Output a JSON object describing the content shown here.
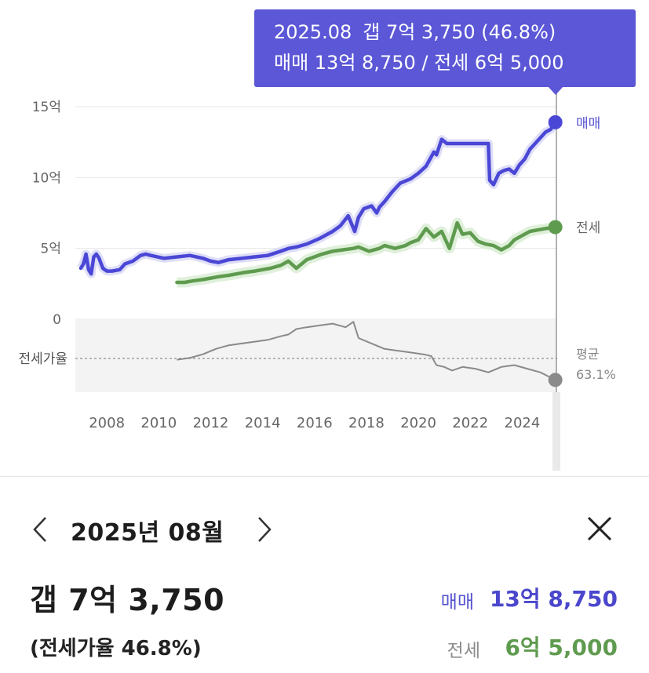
{
  "tooltip": {
    "date": "2025.08",
    "gap_text": "갭 7억 3,750 (46.8%)",
    "detail_text": "매매 13억 8,750 / 전세 6억 5,000"
  },
  "series_labels": {
    "sale": "매매",
    "jeonse": "전세",
    "ratio_avg_label": "평균",
    "ratio_avg_value": "63.1%"
  },
  "ratio_axis_label": "전세가율",
  "colors": {
    "sale": "#4b47d6",
    "jeonse": "#5f9b4f",
    "ratio": "#8a8a8a",
    "tooltip_bg": "#5b57d6",
    "sale_band": "#d6d6f5",
    "jeonse_band": "#dbeed6"
  },
  "chart_data": {
    "type": "line",
    "x_unit": "year",
    "xlim": [
      2007.3,
      2025.62
    ],
    "ylim": [
      0,
      15
    ],
    "y_tick_values": [
      0,
      5,
      10,
      15
    ],
    "y_tick_labels": [
      "0",
      "5억",
      "10억",
      "15억"
    ],
    "x_tick_values": [
      2008,
      2010,
      2012,
      2014,
      2016,
      2018,
      2020,
      2022,
      2024
    ],
    "x_tick_labels": [
      "2008",
      "2010",
      "2012",
      "2014",
      "2016",
      "2018",
      "2020",
      "2022",
      "2024"
    ],
    "grid": true,
    "series": [
      {
        "name": "매매",
        "unit": "억",
        "x": [
          2007.3,
          2007.4,
          2007.5,
          2007.6,
          2007.7,
          2007.8,
          2007.9,
          2008.0,
          2008.15,
          2008.3,
          2008.5,
          2008.8,
          2009.0,
          2009.3,
          2009.6,
          2009.8,
          2010.0,
          2010.5,
          2011.0,
          2011.5,
          2012.0,
          2012.3,
          2012.6,
          2013.0,
          2013.5,
          2014.0,
          2014.5,
          2015.0,
          2015.3,
          2015.6,
          2016.0,
          2016.5,
          2017.0,
          2017.3,
          2017.6,
          2017.85,
          2018.0,
          2018.2,
          2018.5,
          2018.7,
          2018.8,
          2019.0,
          2019.3,
          2019.6,
          2020.0,
          2020.3,
          2020.6,
          2020.9,
          2021.0,
          2021.2,
          2021.4,
          2021.6,
          2021.8,
          2022.0,
          2022.4,
          2022.8,
          2023.0,
          2023.05,
          2023.2,
          2023.4,
          2023.6,
          2023.8,
          2024.0,
          2024.2,
          2024.4,
          2024.6,
          2024.8,
          2025.0,
          2025.2,
          2025.4,
          2025.58
        ],
        "values": [
          3.6,
          3.9,
          4.6,
          3.5,
          3.2,
          4.4,
          4.6,
          4.3,
          3.6,
          3.4,
          3.4,
          3.5,
          3.9,
          4.1,
          4.5,
          4.6,
          4.5,
          4.3,
          4.4,
          4.5,
          4.3,
          4.1,
          4.0,
          4.2,
          4.3,
          4.4,
          4.5,
          4.8,
          5.0,
          5.1,
          5.3,
          5.7,
          6.2,
          6.6,
          7.3,
          6.2,
          7.2,
          7.8,
          8.0,
          7.5,
          7.9,
          8.3,
          9.0,
          9.6,
          9.9,
          10.3,
          10.8,
          11.8,
          11.6,
          12.7,
          12.4,
          12.4,
          12.4,
          12.4,
          12.4,
          12.4,
          12.4,
          9.8,
          9.5,
          10.3,
          10.5,
          10.6,
          10.3,
          10.9,
          11.3,
          12.0,
          12.4,
          12.8,
          13.2,
          13.4,
          13.9
        ]
      },
      {
        "name": "전세",
        "unit": "억",
        "x": [
          2011.0,
          2011.3,
          2011.6,
          2012.0,
          2012.3,
          2012.6,
          2013.0,
          2013.3,
          2013.6,
          2014.0,
          2014.3,
          2014.6,
          2015.0,
          2015.3,
          2015.6,
          2016.0,
          2016.3,
          2016.6,
          2017.0,
          2017.4,
          2017.8,
          2018.0,
          2018.4,
          2018.8,
          2019.0,
          2019.4,
          2019.8,
          2020.0,
          2020.3,
          2020.6,
          2020.9,
          2021.2,
          2021.5,
          2021.8,
          2022.0,
          2022.3,
          2022.6,
          2022.9,
          2023.2,
          2023.5,
          2023.8,
          2024.0,
          2024.3,
          2024.6,
          2024.9,
          2025.2,
          2025.58
        ],
        "values": [
          2.6,
          2.6,
          2.7,
          2.8,
          2.9,
          3.0,
          3.1,
          3.2,
          3.3,
          3.4,
          3.5,
          3.6,
          3.8,
          4.1,
          3.6,
          4.2,
          4.4,
          4.6,
          4.8,
          4.9,
          5.0,
          5.1,
          4.8,
          5.0,
          5.2,
          5.0,
          5.2,
          5.4,
          5.6,
          6.4,
          5.8,
          6.2,
          5.0,
          6.8,
          6.0,
          6.1,
          5.5,
          5.3,
          5.2,
          4.9,
          5.2,
          5.6,
          5.9,
          6.2,
          6.3,
          6.4,
          6.5
        ]
      },
      {
        "name": "전세가율",
        "unit": "%",
        "ylim": [
          40,
          80
        ],
        "x": [
          2011.0,
          2011.5,
          2012.0,
          2012.5,
          2013.0,
          2013.5,
          2014.0,
          2014.5,
          2015.0,
          2015.3,
          2015.6,
          2016.0,
          2016.5,
          2017.0,
          2017.5,
          2017.8,
          2018.0,
          2018.5,
          2019.0,
          2019.5,
          2020.0,
          2020.5,
          2020.8,
          2021.0,
          2021.3,
          2021.6,
          2022.0,
          2022.5,
          2023.0,
          2023.5,
          2024.0,
          2024.5,
          2025.0,
          2025.58
        ],
        "values": [
          58,
          59,
          61,
          64,
          66,
          67,
          68,
          69,
          71,
          72,
          75,
          76,
          77,
          78,
          76,
          79,
          70,
          67,
          64,
          63,
          62,
          61,
          60,
          55,
          54,
          52,
          54,
          53,
          51,
          54,
          55,
          53,
          51,
          46.8
        ]
      }
    ],
    "ratio_average": 63.1,
    "selected": {
      "date": "2025.08",
      "sale": 13.875,
      "jeonse": 6.5,
      "gap": 7.375,
      "ratio": 46.8
    }
  },
  "panel": {
    "prev_label": "이전 월",
    "month_title": "2025년 08월",
    "next_label": "다음 월",
    "gap_amount": "갭 7억 3,750",
    "ratio_text": "(전세가율 46.8%)",
    "sale_label": "매매",
    "sale_value": "13억 8,750",
    "jeonse_label": "전세",
    "jeonse_value": "6억 5,000"
  }
}
